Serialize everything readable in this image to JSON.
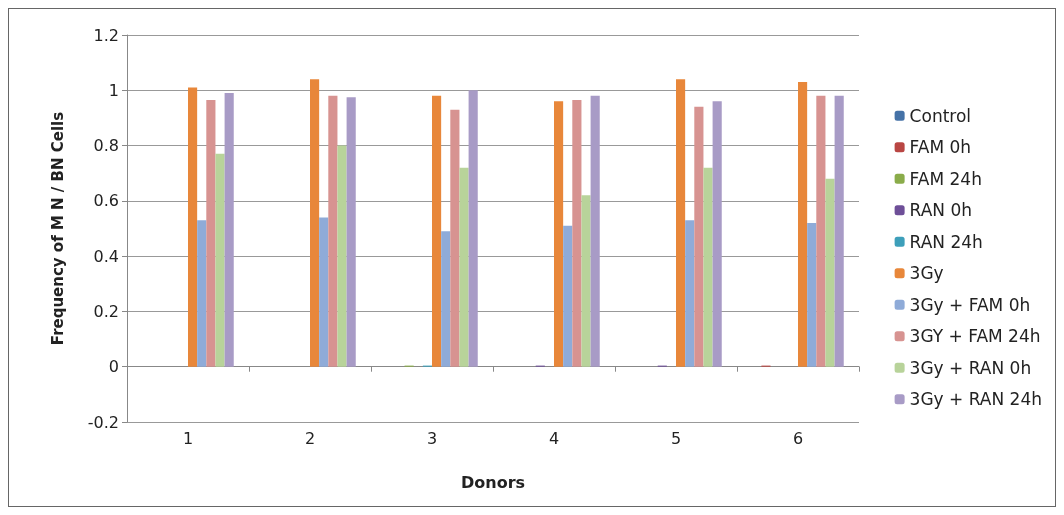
{
  "chart_data": {
    "type": "bar",
    "xlabel": "Donors",
    "ylabel": "Frequency of M N / BN Cells",
    "categories": [
      "1",
      "2",
      "3",
      "4",
      "5",
      "6"
    ],
    "ylim": [
      -0.2,
      1.2
    ],
    "yticks": [
      -0.2,
      0,
      0.2,
      0.4,
      0.6,
      0.8,
      1,
      1.2
    ],
    "grid": "y",
    "legend": "right",
    "series": [
      {
        "name": "Control",
        "color": "#4572a7",
        "values": [
          0,
          0,
          0,
          0,
          0,
          0
        ]
      },
      {
        "name": "FAM 0h",
        "color": "#b94643",
        "values": [
          0,
          0,
          0,
          0,
          0,
          0.004
        ]
      },
      {
        "name": "FAM 24h",
        "color": "#8aac4a",
        "values": [
          0,
          0,
          0.004,
          0,
          0,
          0
        ]
      },
      {
        "name": "RAN 0h",
        "color": "#6e4f98",
        "values": [
          0,
          0,
          0,
          0.004,
          0.004,
          0
        ]
      },
      {
        "name": "RAN 24h",
        "color": "#3d9fba",
        "values": [
          0,
          0,
          0.004,
          0,
          0,
          0
        ]
      },
      {
        "name": "3Gy",
        "color": "#e8873a",
        "values": [
          1.01,
          1.04,
          0.98,
          0.96,
          1.04,
          1.03
        ]
      },
      {
        "name": "3Gy + FAM 0h",
        "color": "#8fabd8",
        "values": [
          0.53,
          0.54,
          0.49,
          0.51,
          0.53,
          0.52
        ]
      },
      {
        "name": "3GY + FAM 24h",
        "color": "#d79391",
        "values": [
          0.965,
          0.98,
          0.93,
          0.965,
          0.94,
          0.98
        ]
      },
      {
        "name": "3Gy + RAN 0h",
        "color": "#b8d39a",
        "values": [
          0.77,
          0.8,
          0.72,
          0.62,
          0.72,
          0.68
        ]
      },
      {
        "name": "3Gy + RAN 24h",
        "color": "#a89bc6",
        "values": [
          0.99,
          0.975,
          1.0,
          0.98,
          0.96,
          0.98
        ]
      }
    ]
  }
}
